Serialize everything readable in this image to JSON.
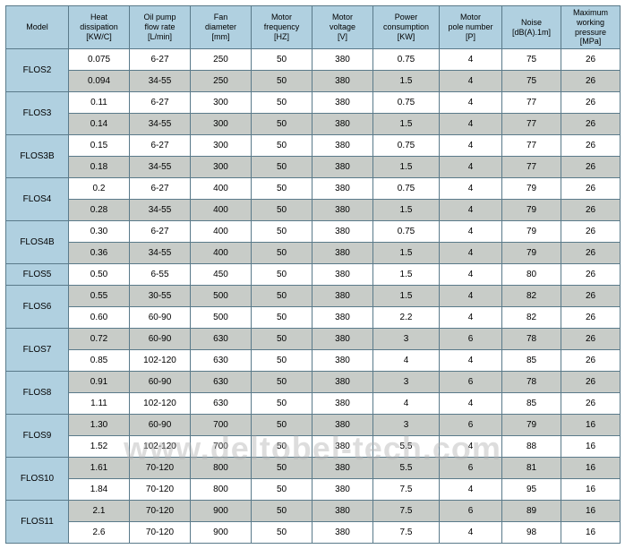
{
  "headers": [
    {
      "l1": "Model",
      "l2": ""
    },
    {
      "l1": "Heat",
      "l2": "dissipation",
      "l3": "[KW/C]"
    },
    {
      "l1": "Oil pump",
      "l2": "flow rate",
      "l3": "[L/min]"
    },
    {
      "l1": "Fan",
      "l2": "diameter",
      "l3": "[mm]"
    },
    {
      "l1": "Motor",
      "l2": "frequency",
      "l3": "[HZ]"
    },
    {
      "l1": "Motor",
      "l2": "voltage",
      "l3": "[V]"
    },
    {
      "l1": "Power",
      "l2": "consumption",
      "l3": "[KW]"
    },
    {
      "l1": "Motor",
      "l2": "pole number",
      "l3": "[P]"
    },
    {
      "l1": "Noise",
      "l2": "",
      "l3": "[dB(A).1m]"
    },
    {
      "l1": "Maximum",
      "l2": "working pressure",
      "l3": "[MPa]"
    }
  ],
  "rows": [
    {
      "model": "FLOS2",
      "span": 2,
      "shade": "white",
      "cells": [
        "0.075",
        "6-27",
        "250",
        "50",
        "380",
        "0.75",
        "4",
        "75",
        "26"
      ]
    },
    {
      "shade": "gray",
      "cells": [
        "0.094",
        "34-55",
        "250",
        "50",
        "380",
        "1.5",
        "4",
        "75",
        "26"
      ]
    },
    {
      "model": "FLOS3",
      "span": 2,
      "shade": "white",
      "cells": [
        "0.11",
        "6-27",
        "300",
        "50",
        "380",
        "0.75",
        "4",
        "77",
        "26"
      ]
    },
    {
      "shade": "gray",
      "cells": [
        "0.14",
        "34-55",
        "300",
        "50",
        "380",
        "1.5",
        "4",
        "77",
        "26"
      ]
    },
    {
      "model": "FLOS3B",
      "span": 2,
      "shade": "white",
      "cells": [
        "0.15",
        "6-27",
        "300",
        "50",
        "380",
        "0.75",
        "4",
        "77",
        "26"
      ]
    },
    {
      "shade": "gray",
      "cells": [
        "0.18",
        "34-55",
        "300",
        "50",
        "380",
        "1.5",
        "4",
        "77",
        "26"
      ]
    },
    {
      "model": "FLOS4",
      "span": 2,
      "shade": "white",
      "cells": [
        "0.2",
        "6-27",
        "400",
        "50",
        "380",
        "0.75",
        "4",
        "79",
        "26"
      ]
    },
    {
      "shade": "gray",
      "cells": [
        "0.28",
        "34-55",
        "400",
        "50",
        "380",
        "1.5",
        "4",
        "79",
        "26"
      ]
    },
    {
      "model": "FLOS4B",
      "span": 2,
      "shade": "white",
      "cells": [
        "0.30",
        "6-27",
        "400",
        "50",
        "380",
        "0.75",
        "4",
        "79",
        "26"
      ]
    },
    {
      "shade": "gray",
      "cells": [
        "0.36",
        "34-55",
        "400",
        "50",
        "380",
        "1.5",
        "4",
        "79",
        "26"
      ]
    },
    {
      "model": "FLOS5",
      "span": 1,
      "shade": "white",
      "cells": [
        "0.50",
        "6-55",
        "450",
        "50",
        "380",
        "1.5",
        "4",
        "80",
        "26"
      ]
    },
    {
      "model": "FLOS6",
      "span": 2,
      "shade": "gray",
      "cells": [
        "0.55",
        "30-55",
        "500",
        "50",
        "380",
        "1.5",
        "4",
        "82",
        "26"
      ]
    },
    {
      "shade": "white",
      "cells": [
        "0.60",
        "60-90",
        "500",
        "50",
        "380",
        "2.2",
        "4",
        "82",
        "26"
      ]
    },
    {
      "model": "FLOS7",
      "span": 2,
      "shade": "gray",
      "cells": [
        "0.72",
        "60-90",
        "630",
        "50",
        "380",
        "3",
        "6",
        "78",
        "26"
      ]
    },
    {
      "shade": "white",
      "cells": [
        "0.85",
        "102-120",
        "630",
        "50",
        "380",
        "4",
        "4",
        "85",
        "26"
      ]
    },
    {
      "model": "FLOS8",
      "span": 2,
      "shade": "gray",
      "cells": [
        "0.91",
        "60-90",
        "630",
        "50",
        "380",
        "3",
        "6",
        "78",
        "26"
      ]
    },
    {
      "shade": "white",
      "cells": [
        "1.11",
        "102-120",
        "630",
        "50",
        "380",
        "4",
        "4",
        "85",
        "26"
      ]
    },
    {
      "model": "FLOS9",
      "span": 2,
      "shade": "gray",
      "cells": [
        "1.30",
        "60-90",
        "700",
        "50",
        "380",
        "3",
        "6",
        "79",
        "16"
      ]
    },
    {
      "shade": "white",
      "cells": [
        "1.52",
        "102-120",
        "700",
        "50",
        "380",
        "5.5",
        "4",
        "88",
        "16"
      ]
    },
    {
      "model": "FLOS10",
      "span": 2,
      "shade": "gray",
      "cells": [
        "1.61",
        "70-120",
        "800",
        "50",
        "380",
        "5.5",
        "6",
        "81",
        "16"
      ]
    },
    {
      "shade": "white",
      "cells": [
        "1.84",
        "70-120",
        "800",
        "50",
        "380",
        "7.5",
        "4",
        "95",
        "16"
      ]
    },
    {
      "model": "FLOS11",
      "span": 2,
      "shade": "gray",
      "cells": [
        "2.1",
        "70-120",
        "900",
        "50",
        "380",
        "7.5",
        "6",
        "89",
        "16"
      ]
    },
    {
      "shade": "white",
      "cells": [
        "2.6",
        "70-120",
        "900",
        "50",
        "380",
        "7.5",
        "4",
        "98",
        "16"
      ]
    }
  ],
  "watermark": "www.deltobel-tech.com"
}
